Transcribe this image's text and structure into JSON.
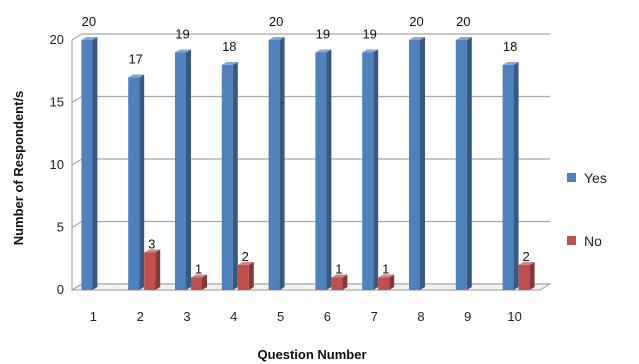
{
  "chart_data": {
    "type": "bar",
    "style": "3d-clustered-column",
    "xlabel": "Question Number",
    "ylabel": "Number of Respondent/s",
    "categories": [
      "1",
      "2",
      "3",
      "4",
      "5",
      "6",
      "7",
      "8",
      "9",
      "10"
    ],
    "series": [
      {
        "name": "Yes",
        "color": "#4F81BD",
        "values": [
          20,
          17,
          19,
          18,
          20,
          19,
          19,
          20,
          20,
          18
        ]
      },
      {
        "name": "No",
        "color": "#C0504D",
        "values": [
          0,
          3,
          1,
          2,
          0,
          1,
          1,
          0,
          0,
          2
        ]
      }
    ],
    "yticks": [
      0,
      5,
      10,
      15,
      20
    ],
    "ylim": [
      0,
      20
    ],
    "grid": true,
    "legend": "right"
  }
}
